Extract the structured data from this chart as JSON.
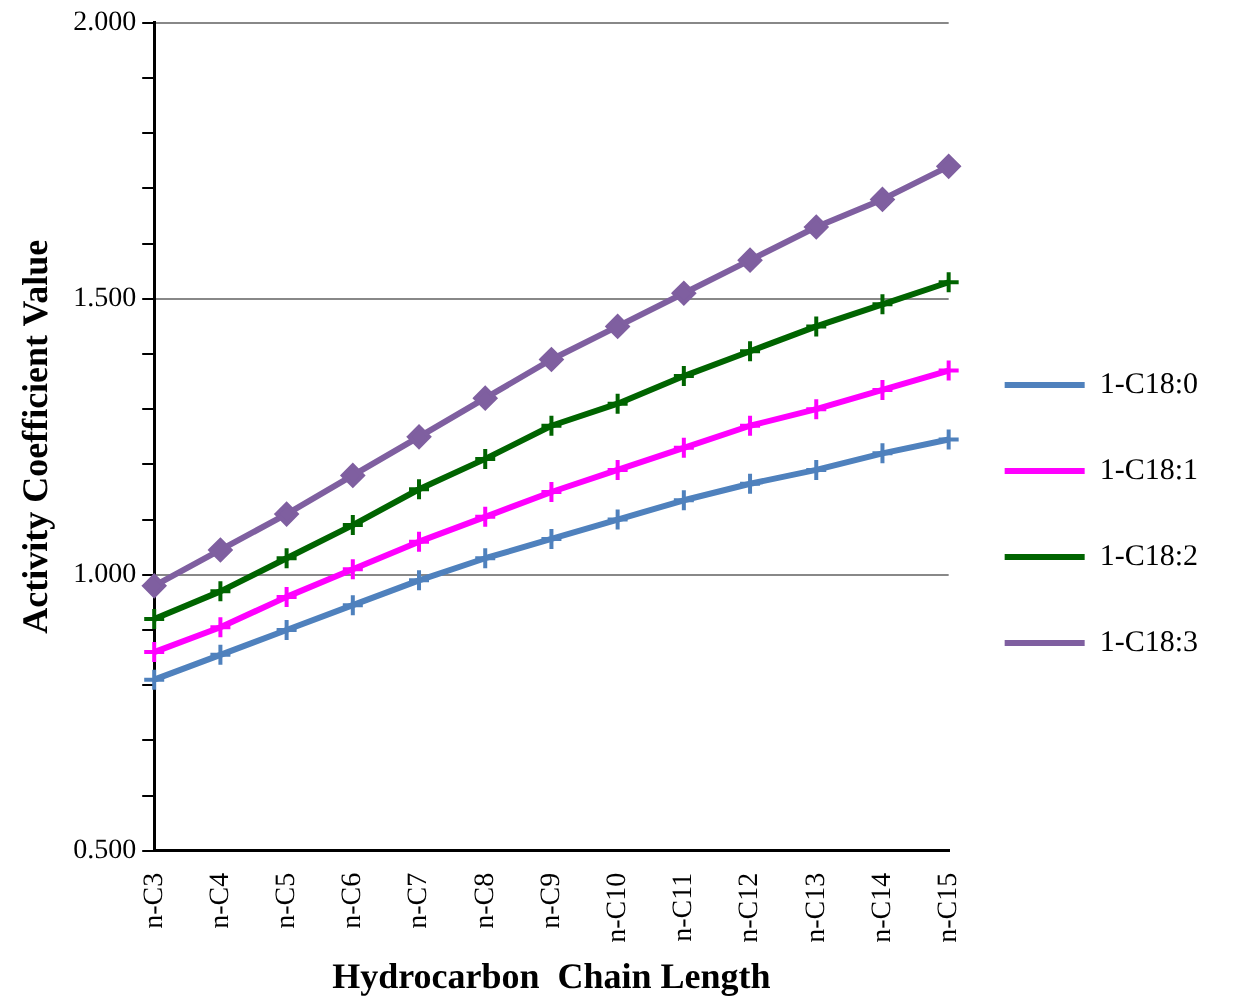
{
  "chart_data": {
    "type": "line",
    "xlabel": "Hydrocarbon  Chain Length",
    "ylabel": "Activity Coefficient Value",
    "categories": [
      "n-C3",
      "n-C4",
      "n-C5",
      "n-C6",
      "n-C7",
      "n-C8",
      "n-C9",
      "n-C10",
      "n-C11",
      "n-C12",
      "n-C13",
      "n-C14",
      "n-C15"
    ],
    "ylim": [
      0.5,
      2.0
    ],
    "yticks": [
      {
        "value": 0.5,
        "label": "0.500"
      },
      {
        "value": 0.6,
        "label": null
      },
      {
        "value": 0.7,
        "label": null
      },
      {
        "value": 0.8,
        "label": null
      },
      {
        "value": 0.9,
        "label": null
      },
      {
        "value": 1.0,
        "label": "1.000"
      },
      {
        "value": 1.1,
        "label": null
      },
      {
        "value": 1.2,
        "label": null
      },
      {
        "value": 1.3,
        "label": null
      },
      {
        "value": 1.4,
        "label": null
      },
      {
        "value": 1.5,
        "label": "1.500"
      },
      {
        "value": 1.6,
        "label": null
      },
      {
        "value": 1.7,
        "label": null
      },
      {
        "value": 1.8,
        "label": null
      },
      {
        "value": 1.9,
        "label": null
      },
      {
        "value": 2.0,
        "label": "2.000"
      }
    ],
    "grid": "y",
    "legend": "right",
    "line_style": "solid",
    "series": [
      {
        "name": "1-C18:0",
        "color": "#4f81bd",
        "marker": "cross",
        "values": [
          0.81,
          0.855,
          0.9,
          0.945,
          0.99,
          1.03,
          1.065,
          1.1,
          1.135,
          1.165,
          1.19,
          1.22,
          1.245
        ]
      },
      {
        "name": "1-C18:1",
        "color": "#ff00ff",
        "marker": "cross",
        "values": [
          0.86,
          0.905,
          0.96,
          1.01,
          1.06,
          1.105,
          1.15,
          1.19,
          1.23,
          1.27,
          1.3,
          1.335,
          1.37
        ]
      },
      {
        "name": "1-C18:2",
        "color": "#006400",
        "marker": "cross",
        "values": [
          0.92,
          0.97,
          1.03,
          1.09,
          1.155,
          1.21,
          1.27,
          1.31,
          1.36,
          1.405,
          1.45,
          1.49,
          1.53
        ]
      },
      {
        "name": "1-C18:3",
        "color": "#7f5fa0",
        "marker": "diamond",
        "values": [
          0.98,
          1.045,
          1.11,
          1.18,
          1.25,
          1.32,
          1.39,
          1.45,
          1.51,
          1.57,
          1.63,
          1.68,
          1.74
        ]
      }
    ]
  }
}
